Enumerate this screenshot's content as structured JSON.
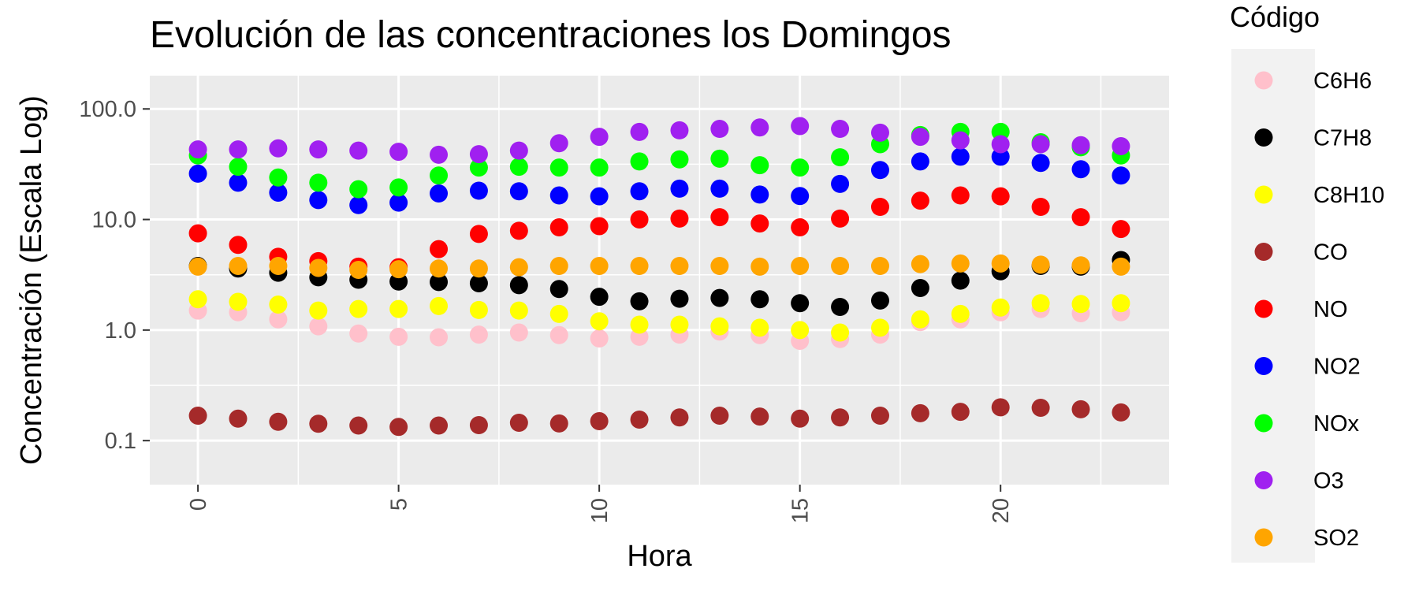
{
  "chart_data": {
    "type": "scatter",
    "title": "Evolución de las concentraciones los Domingos",
    "xlabel": "Hora",
    "ylabel": "Concentración (Escala Log)",
    "y_scale": "log10",
    "xlim": [
      -1.2,
      24.2
    ],
    "ylim": [
      0.04,
      200
    ],
    "x_ticks": [
      0,
      5,
      10,
      15,
      20
    ],
    "x_tick_labels": [
      "0",
      "5",
      "10",
      "15",
      "20"
    ],
    "y_ticks": [
      0.1,
      1.0,
      10.0,
      100.0
    ],
    "y_tick_labels": [
      "0.1",
      "1.0",
      "10.0",
      "100.0"
    ],
    "grid": true,
    "legend_title": "Código",
    "legend_position": "right",
    "x": [
      0,
      1,
      2,
      3,
      4,
      5,
      6,
      7,
      8,
      9,
      10,
      11,
      12,
      13,
      14,
      15,
      16,
      17,
      18,
      19,
      20,
      21,
      22,
      23
    ],
    "series": [
      {
        "name": "C6H6",
        "color": "#FFC0CB",
        "values": [
          1.5,
          1.45,
          1.25,
          1.08,
          0.93,
          0.87,
          0.86,
          0.91,
          0.95,
          0.9,
          0.84,
          0.87,
          0.91,
          0.97,
          0.9,
          0.8,
          0.83,
          0.91,
          1.18,
          1.25,
          1.45,
          1.55,
          1.42,
          1.45
        ]
      },
      {
        "name": "C7H8",
        "color": "#000000",
        "values": [
          3.8,
          3.6,
          3.3,
          3.0,
          2.85,
          2.75,
          2.72,
          2.65,
          2.55,
          2.35,
          2.0,
          1.82,
          1.92,
          1.95,
          1.9,
          1.75,
          1.62,
          1.85,
          2.4,
          2.8,
          3.4,
          3.8,
          3.75,
          4.3
        ]
      },
      {
        "name": "C8H10",
        "color": "#FFFF00",
        "values": [
          1.9,
          1.8,
          1.7,
          1.5,
          1.55,
          1.55,
          1.65,
          1.52,
          1.5,
          1.4,
          1.2,
          1.12,
          1.12,
          1.08,
          1.05,
          1.0,
          0.95,
          1.05,
          1.25,
          1.4,
          1.6,
          1.75,
          1.72,
          1.75
        ]
      },
      {
        "name": "CO",
        "color": "#A52A2A",
        "values": [
          0.168,
          0.158,
          0.148,
          0.142,
          0.137,
          0.133,
          0.137,
          0.138,
          0.145,
          0.143,
          0.15,
          0.155,
          0.162,
          0.168,
          0.165,
          0.158,
          0.162,
          0.168,
          0.177,
          0.182,
          0.2,
          0.198,
          0.192,
          0.18
        ]
      },
      {
        "name": "NO",
        "color": "#FF0000",
        "values": [
          7.5,
          5.9,
          4.6,
          4.2,
          3.75,
          3.7,
          5.4,
          7.4,
          7.9,
          8.5,
          8.7,
          10.0,
          10.2,
          10.5,
          9.2,
          8.5,
          10.2,
          13.0,
          14.8,
          16.5,
          16.2,
          13.0,
          10.5,
          8.2
        ]
      },
      {
        "name": "NO2",
        "color": "#0000FF",
        "values": [
          26,
          21.5,
          17.5,
          15,
          13.5,
          14.2,
          17.2,
          18.2,
          18,
          16.5,
          16.2,
          18,
          19,
          19,
          16.8,
          16.3,
          21,
          28,
          33.5,
          37,
          37,
          32.5,
          28.5,
          25
        ]
      },
      {
        "name": "NOx",
        "color": "#00FF00",
        "values": [
          38,
          30,
          24,
          21.5,
          18.8,
          19.5,
          25,
          29.5,
          30,
          29.5,
          29.5,
          33.5,
          35,
          35.5,
          31,
          29.5,
          36.5,
          48,
          58,
          62,
          62,
          50,
          45,
          38
        ]
      },
      {
        "name": "O3",
        "color": "#A020F0",
        "values": [
          43,
          43,
          44,
          43,
          42,
          41,
          38.5,
          39,
          42,
          49,
          56,
          62,
          64,
          66,
          68,
          70,
          66,
          61,
          56,
          52,
          48,
          48,
          47,
          46
        ]
      },
      {
        "name": "SO2",
        "color": "#FFA500",
        "values": [
          3.75,
          3.8,
          3.8,
          3.65,
          3.5,
          3.55,
          3.6,
          3.6,
          3.7,
          3.8,
          3.8,
          3.8,
          3.8,
          3.8,
          3.75,
          3.8,
          3.8,
          3.8,
          3.95,
          4.0,
          4.0,
          3.9,
          3.85,
          3.75
        ]
      }
    ]
  }
}
